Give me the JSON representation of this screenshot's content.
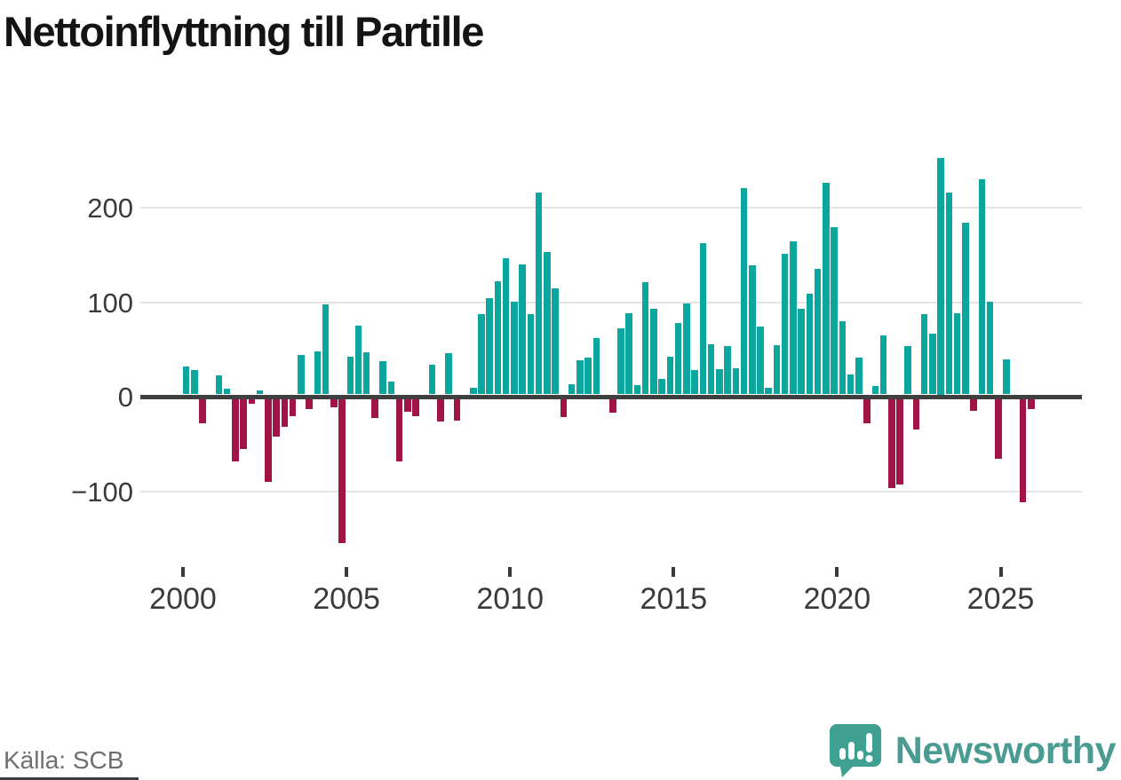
{
  "title": "Nettoinflyttning till Partille",
  "footer": {
    "source": "Källa: SCB"
  },
  "brand": {
    "wordmark": "Newsworthy",
    "icon": "speech-bubble-bar-chart-icon"
  },
  "colors": {
    "positive_bar": "#0ba69d",
    "negative_bar": "#a01447",
    "gridline": "#e4e4e4",
    "zero_line": "#3f3f3f",
    "axis_text": "#3a3a3a",
    "title_text": "#141414",
    "source_text": "#6f6f6f",
    "brand_teal": "#4a9b92",
    "icon_teal": "#3fa091"
  },
  "chart_data": {
    "type": "bar",
    "title": "Nettoinflyttning till Partille",
    "xlabel": "",
    "ylabel": "",
    "grid": "horizontal",
    "legend": "none",
    "ylim": [
      -160,
      260
    ],
    "y_ticks": [
      200,
      100,
      0,
      -100
    ],
    "y_tick_labels": [
      "200",
      "100",
      "0",
      "−100"
    ],
    "x_tick_years": [
      2000,
      2005,
      2010,
      2015,
      2020,
      2025
    ],
    "x_tick_labels": [
      "2000",
      "2005",
      "2010",
      "2015",
      "2020",
      "2025"
    ],
    "period": "quarterly",
    "categories": [
      "2000 Q1",
      "2000 Q2",
      "2000 Q3",
      "2000 Q4",
      "2001 Q1",
      "2001 Q2",
      "2001 Q3",
      "2001 Q4",
      "2002 Q1",
      "2002 Q2",
      "2002 Q3",
      "2002 Q4",
      "2003 Q1",
      "2003 Q2",
      "2003 Q3",
      "2003 Q4",
      "2004 Q1",
      "2004 Q2",
      "2004 Q3",
      "2004 Q4",
      "2005 Q1",
      "2005 Q2",
      "2005 Q3",
      "2005 Q4",
      "2006 Q1",
      "2006 Q2",
      "2006 Q3",
      "2006 Q4",
      "2007 Q1",
      "2007 Q2",
      "2007 Q3",
      "2007 Q4",
      "2008 Q1",
      "2008 Q2",
      "2008 Q3",
      "2008 Q4",
      "2009 Q1",
      "2009 Q2",
      "2009 Q3",
      "2009 Q4",
      "2010 Q1",
      "2010 Q2",
      "2010 Q3",
      "2010 Q4",
      "2011 Q1",
      "2011 Q2",
      "2011 Q3",
      "2011 Q4",
      "2012 Q1",
      "2012 Q2",
      "2012 Q3",
      "2012 Q4",
      "2013 Q1",
      "2013 Q2",
      "2013 Q3",
      "2013 Q4",
      "2014 Q1",
      "2014 Q2",
      "2014 Q3",
      "2014 Q4",
      "2015 Q1",
      "2015 Q2",
      "2015 Q3",
      "2015 Q4",
      "2016 Q1",
      "2016 Q2",
      "2016 Q3",
      "2016 Q4",
      "2017 Q1",
      "2017 Q2",
      "2017 Q3",
      "2017 Q4",
      "2018 Q1",
      "2018 Q2",
      "2018 Q3",
      "2018 Q4",
      "2019 Q1",
      "2019 Q2",
      "2019 Q3",
      "2019 Q4",
      "2020 Q1",
      "2020 Q2",
      "2020 Q3",
      "2020 Q4",
      "2021 Q1",
      "2021 Q2",
      "2021 Q3",
      "2021 Q4",
      "2022 Q1",
      "2022 Q2",
      "2022 Q3",
      "2022 Q4",
      "2023 Q1",
      "2023 Q2",
      "2023 Q3",
      "2023 Q4",
      "2024 Q1",
      "2024 Q2",
      "2024 Q3",
      "2024 Q4",
      "2025 Q1",
      "2025 Q2",
      "2025 Q3",
      "2025 Q4"
    ],
    "values": [
      30,
      26,
      -26,
      0,
      20,
      6,
      -66,
      -53,
      -5,
      4,
      -88,
      -40,
      -30,
      -18,
      42,
      -11,
      46,
      95,
      -9,
      -153,
      40,
      73,
      45,
      -20,
      35,
      14,
      -66,
      -14,
      -18,
      0,
      31,
      -24,
      44,
      -23,
      0,
      7,
      85,
      102,
      120,
      144,
      98,
      138,
      85,
      214,
      151,
      112,
      -19,
      11,
      36,
      39,
      60,
      0,
      -15,
      70,
      86,
      10,
      119,
      91,
      16,
      40,
      76,
      96,
      26,
      160,
      53,
      27,
      51,
      28,
      218,
      137,
      72,
      7,
      52,
      149,
      162,
      91,
      107,
      133,
      224,
      177,
      77,
      21,
      39,
      -26,
      9,
      62,
      -94,
      -91,
      51,
      -32,
      85,
      64,
      250,
      214,
      86,
      182,
      -13,
      228,
      98,
      -63,
      37,
      0,
      -109,
      -11
    ]
  }
}
